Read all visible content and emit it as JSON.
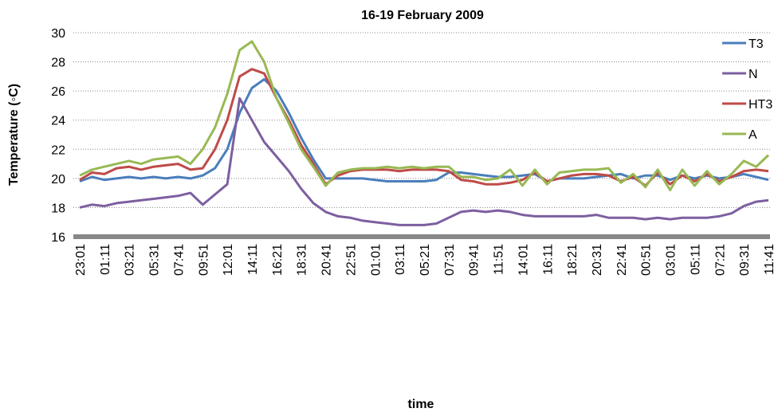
{
  "chart_data": {
    "type": "line",
    "title": "16-19 February 2009",
    "x_label": "time",
    "y_label": "Temperature (◦C)",
    "categories": [
      "23:01",
      null,
      "01:11",
      null,
      "03:21",
      null,
      "05:31",
      null,
      "07:41",
      null,
      "09:51",
      null,
      "12:01",
      null,
      "14:11",
      null,
      "16:21",
      null,
      "18:31",
      null,
      "20:41",
      null,
      "22:51",
      null,
      "01:01",
      null,
      "03:11",
      null,
      "05:21",
      null,
      "07:31",
      null,
      "09:41",
      null,
      "11:51",
      null,
      "14:01",
      null,
      "16:11",
      null,
      "18:21",
      null,
      "20:31",
      null,
      "22:41",
      null,
      "00:51",
      null,
      "03:01",
      null,
      "05:11",
      null,
      "07:21",
      null,
      "09:31",
      null,
      "11:41"
    ],
    "series": [
      {
        "name": "T3",
        "color": "#4a7ebb",
        "values": [
          19.8,
          20.1,
          19.9,
          20.0,
          20.1,
          20.0,
          20.1,
          20.0,
          20.1,
          20.0,
          20.2,
          20.7,
          22.0,
          24.5,
          26.2,
          26.8,
          26.0,
          24.5,
          22.8,
          21.3,
          20.0,
          20.0,
          20.0,
          20.0,
          19.9,
          19.8,
          19.8,
          19.8,
          19.8,
          19.9,
          20.4,
          20.4,
          20.3,
          20.2,
          20.1,
          20.1,
          20.2,
          20.3,
          19.8,
          20.0,
          20.0,
          20.0,
          20.1,
          20.2,
          20.3,
          20.0,
          20.2,
          20.2,
          19.9,
          20.2,
          20.0,
          20.2,
          20.0,
          20.1,
          20.3,
          20.1,
          19.9
        ]
      },
      {
        "name": "N",
        "color": "#7d5fa0",
        "values": [
          18.0,
          18.2,
          18.1,
          18.3,
          18.4,
          18.5,
          18.6,
          18.7,
          18.8,
          19.0,
          18.2,
          18.9,
          19.6,
          25.5,
          24.0,
          22.5,
          21.5,
          20.5,
          19.3,
          18.3,
          17.7,
          17.4,
          17.3,
          17.1,
          17.0,
          16.9,
          16.8,
          16.8,
          16.8,
          16.9,
          17.3,
          17.7,
          17.8,
          17.7,
          17.8,
          17.7,
          17.5,
          17.4,
          17.4,
          17.4,
          17.4,
          17.4,
          17.5,
          17.3,
          17.3,
          17.3,
          17.2,
          17.3,
          17.2,
          17.3,
          17.3,
          17.3,
          17.4,
          17.6,
          18.1,
          18.4,
          18.5
        ]
      },
      {
        "name": "HT3",
        "color": "#be4b48",
        "values": [
          19.9,
          20.4,
          20.3,
          20.7,
          20.8,
          20.6,
          20.8,
          20.9,
          21.0,
          20.6,
          20.7,
          22.0,
          24.0,
          27.0,
          27.5,
          27.2,
          25.5,
          24.0,
          22.3,
          21.0,
          19.6,
          20.2,
          20.5,
          20.6,
          20.6,
          20.6,
          20.5,
          20.6,
          20.6,
          20.6,
          20.5,
          19.9,
          19.8,
          19.6,
          19.6,
          19.7,
          19.9,
          20.4,
          19.8,
          20.0,
          20.2,
          20.3,
          20.3,
          20.2,
          19.8,
          20.1,
          19.5,
          20.4,
          19.6,
          20.2,
          19.8,
          20.3,
          19.8,
          20.1,
          20.5,
          20.6,
          20.5
        ]
      },
      {
        "name": "A",
        "color": "#98b954",
        "values": [
          20.2,
          20.6,
          20.8,
          21.0,
          21.2,
          21.0,
          21.3,
          21.4,
          21.5,
          21.0,
          22.0,
          23.5,
          25.8,
          28.8,
          29.4,
          28.0,
          25.5,
          23.8,
          22.0,
          20.8,
          19.5,
          20.4,
          20.6,
          20.7,
          20.7,
          20.8,
          20.7,
          20.8,
          20.7,
          20.8,
          20.8,
          20.1,
          20.1,
          19.9,
          20.0,
          20.6,
          19.5,
          20.6,
          19.6,
          20.4,
          20.5,
          20.6,
          20.6,
          20.7,
          19.7,
          20.3,
          19.4,
          20.6,
          19.2,
          20.6,
          19.5,
          20.5,
          19.6,
          20.3,
          21.2,
          20.8,
          21.6
        ]
      }
    ],
    "ylim": [
      16,
      30
    ],
    "yticks": [
      16,
      18,
      20,
      22,
      24,
      26,
      28,
      30
    ],
    "grid": true
  }
}
